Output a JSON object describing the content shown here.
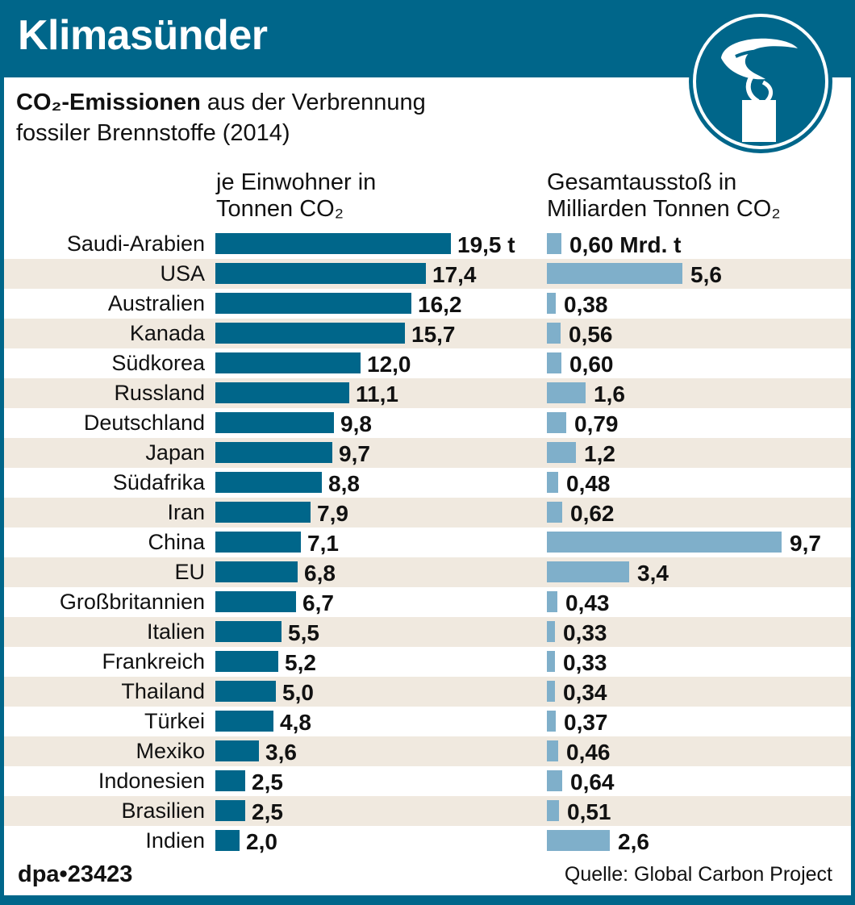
{
  "header": {
    "title": "Klimasünder",
    "logo_icon": "smokestack-icon"
  },
  "subtitle": {
    "bold": "CO₂-Emissionen",
    "rest1": " aus der Verbrennung",
    "line2": "fossiler Brennstoffe (2014)"
  },
  "chart_data": {
    "type": "bar",
    "title": "CO₂-Emissionen aus der Verbrennung fossiler Brennstoffe (2014)",
    "categories": [
      "Saudi-Arabien",
      "USA",
      "Australien",
      "Kanada",
      "Südkorea",
      "Russland",
      "Deutschland",
      "Japan",
      "Südafrika",
      "Iran",
      "China",
      "EU",
      "Großbritannien",
      "Italien",
      "Frankreich",
      "Thailand",
      "Türkei",
      "Mexiko",
      "Indonesien",
      "Brasilien",
      "Indien"
    ],
    "series": [
      {
        "name": "je Einwohner in Tonnen CO₂",
        "label_line1": "je Einwohner in",
        "label_line2": "Tonnen CO₂",
        "values": [
          19.5,
          17.4,
          16.2,
          15.7,
          12.0,
          11.1,
          9.8,
          9.7,
          8.8,
          7.9,
          7.1,
          6.8,
          6.7,
          5.5,
          5.2,
          5.0,
          4.8,
          3.6,
          2.5,
          2.5,
          2.0
        ],
        "labels": [
          "19,5 t",
          "17,4",
          "16,2",
          "15,7",
          "12,0",
          "11,1",
          "9,8",
          "9,7",
          "8,8",
          "7,9",
          "7,1",
          "6,8",
          "6,7",
          "5,5",
          "5,2",
          "5,0",
          "4,8",
          "3,6",
          "2,5",
          "2,5",
          "2,0"
        ],
        "color": "#00668a"
      },
      {
        "name": "Gesamtausstoß in Milliarden Tonnen CO₂",
        "label_line1": "Gesamtausstoß in",
        "label_line2": "Milliarden Tonnen CO₂",
        "values": [
          0.6,
          5.6,
          0.38,
          0.56,
          0.6,
          1.6,
          0.79,
          1.2,
          0.48,
          0.62,
          9.7,
          3.4,
          0.43,
          0.33,
          0.33,
          0.34,
          0.37,
          0.46,
          0.64,
          0.51,
          2.6
        ],
        "labels": [
          "0,60 Mrd. t",
          "5,6",
          "0,38",
          "0,56",
          "0,60",
          "1,6",
          "0,79",
          "1,2",
          "0,48",
          "0,62",
          "9,7",
          "3,4",
          "0,43",
          "0,33",
          "0,33",
          "0,34",
          "0,37",
          "0,46",
          "0,64",
          "0,51",
          "2,6"
        ],
        "color": "#7fafca"
      }
    ],
    "stripe_color": "#f0e9df"
  },
  "footer": {
    "id": "dpa•23423",
    "source": "Quelle: Global Carbon Project"
  }
}
